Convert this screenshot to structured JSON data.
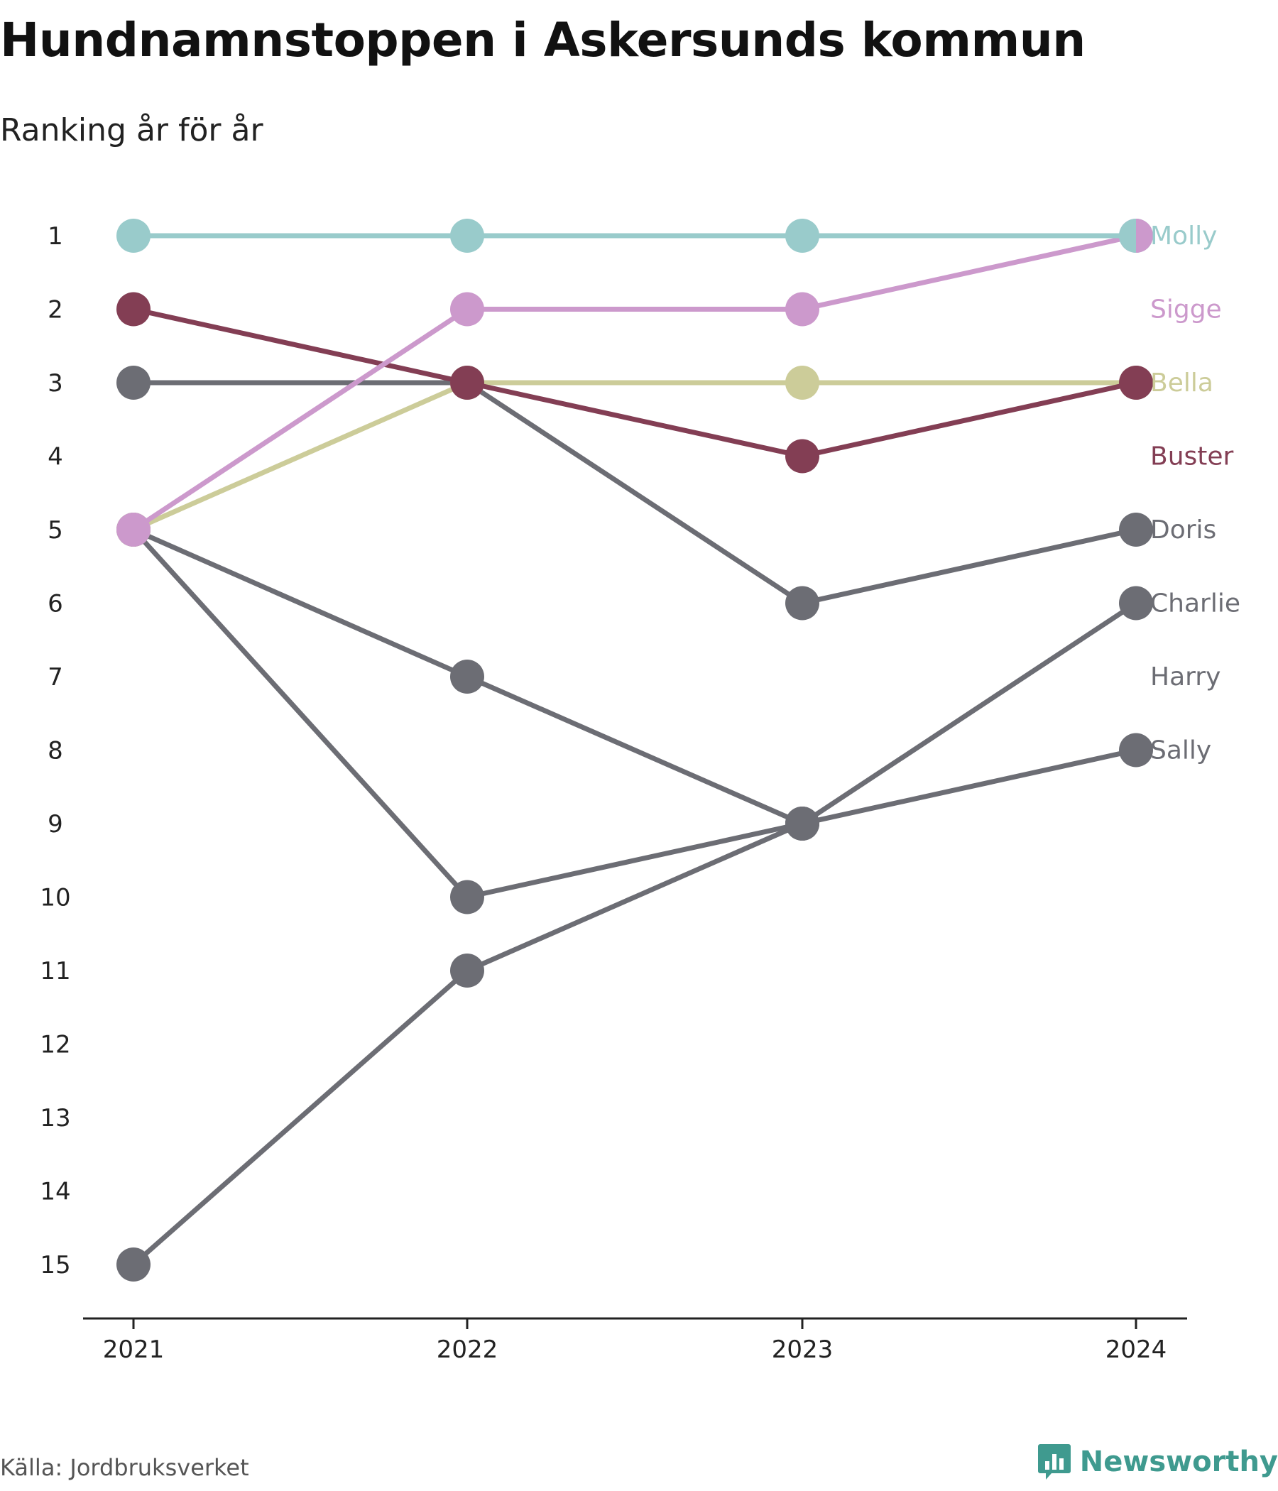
{
  "title": "Hundnamnstoppen i Askersunds kommun",
  "subtitle": "Ranking år för år",
  "source": "Källa: Jordbruksverket",
  "brand": "Newsworthy",
  "colors": {
    "Molly": "#99cbcb",
    "Sigge": "#cc99cc",
    "Bella": "#cccc99",
    "Buster": "#833e54",
    "grey": "#6c6d74",
    "axis": "#222222",
    "brand": "#3f9a8f"
  },
  "chart_data": {
    "type": "line",
    "chart_style": "bump",
    "title": "Hundnamnstoppen i Askersunds kommun",
    "subtitle": "Ranking år för år",
    "x": [
      "2021",
      "2022",
      "2023",
      "2024"
    ],
    "y_ticks": [
      "1",
      "2",
      "3",
      "4",
      "5",
      "6",
      "7",
      "8",
      "9",
      "10",
      "11",
      "12",
      "13",
      "14",
      "15"
    ],
    "ylim": [
      1,
      15
    ],
    "y_reversed": true,
    "grid": false,
    "series": [
      {
        "name": "Molly",
        "values": [
          1,
          1,
          1,
          1
        ],
        "color": "#99cbcb"
      },
      {
        "name": "Sigge",
        "values": [
          5,
          2,
          2,
          1
        ],
        "color": "#cc99cc"
      },
      {
        "name": "Bella",
        "values": [
          5,
          3,
          3,
          3
        ],
        "color": "#cccc99"
      },
      {
        "name": "Buster",
        "values": [
          2,
          3,
          4,
          3
        ],
        "color": "#833e54"
      },
      {
        "name": "Doris",
        "values": [
          3,
          3,
          6,
          5
        ],
        "color": "#6c6d74"
      },
      {
        "name": "Charlie",
        "values": [
          15,
          11,
          9,
          6
        ],
        "color": "#6c6d74"
      },
      {
        "name": "Harry",
        "values": [
          5,
          7,
          9,
          null
        ],
        "color": "#6c6d74"
      },
      {
        "name": "Sally",
        "values": [
          5,
          10,
          9,
          8
        ],
        "color": "#6c6d74"
      }
    ],
    "end_labels": [
      {
        "name": "Molly",
        "rank": 1,
        "color": "#99cbcb"
      },
      {
        "name": "Sigge",
        "rank": 2,
        "color": "#cc99cc"
      },
      {
        "name": "Bella",
        "rank": 3,
        "color": "#cccc99"
      },
      {
        "name": "Buster",
        "rank": 4,
        "color": "#833e54"
      },
      {
        "name": "Doris",
        "rank": 5,
        "color": "#6c6d74"
      },
      {
        "name": "Charlie",
        "rank": 6,
        "color": "#6c6d74"
      },
      {
        "name": "Harry",
        "rank": 7,
        "color": "#6c6d74"
      },
      {
        "name": "Sally",
        "rank": 8,
        "color": "#6c6d74"
      }
    ]
  }
}
